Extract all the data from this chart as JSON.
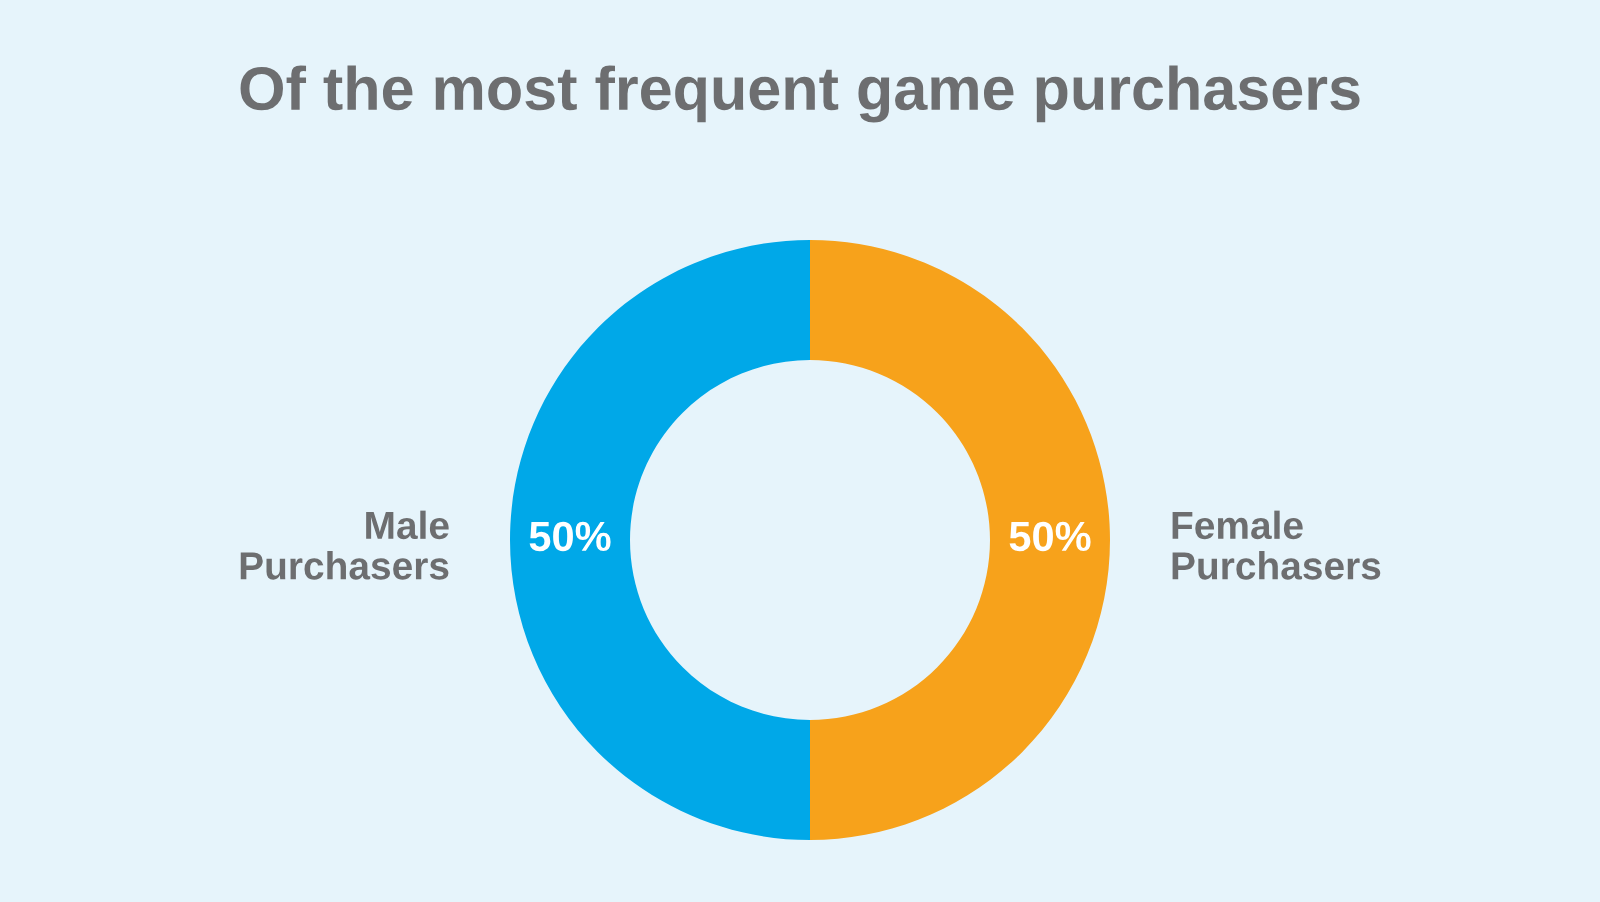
{
  "chart_data": {
    "type": "donut",
    "title": "Of the most frequent game purchasers",
    "categories": [
      "Male\nPurchasers",
      "Female\nPurchasers"
    ],
    "values": [
      50,
      50
    ],
    "colors": [
      "#00a8e8",
      "#f7a21b"
    ],
    "value_labels": [
      "50%",
      "50%"
    ]
  }
}
